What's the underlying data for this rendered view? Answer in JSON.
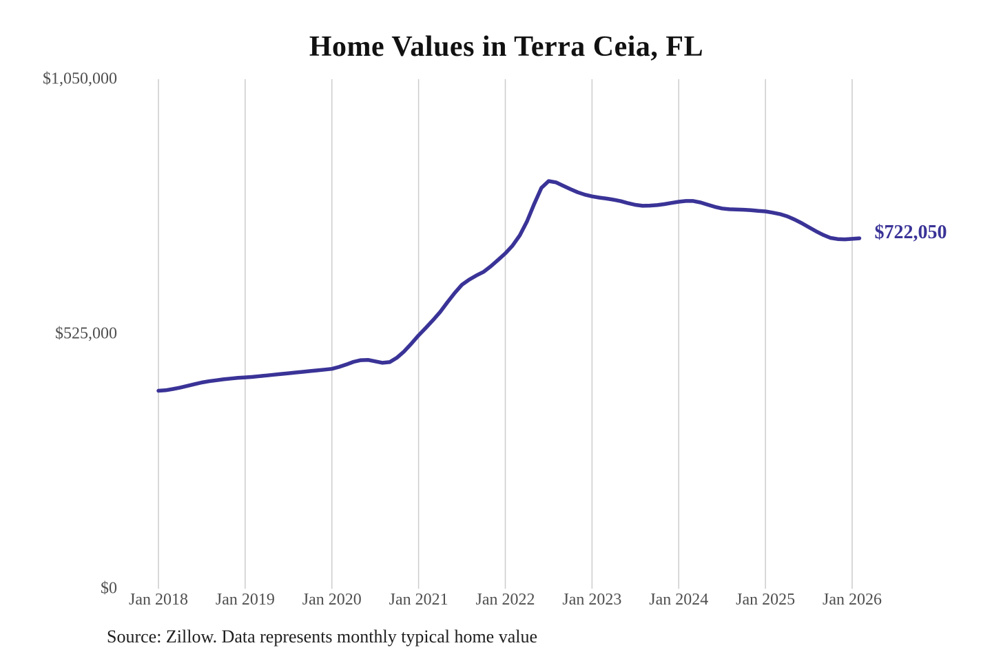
{
  "chart_data": {
    "type": "line",
    "title": "Home Values in Terra Ceia, FL",
    "source_note": "Source: Zillow. Data represents monthly typical home value",
    "legend": "none",
    "grid": "vertical-only",
    "x_axis": {
      "ticks": [
        "Jan 2018",
        "Jan 2019",
        "Jan 2020",
        "Jan 2021",
        "Jan 2022",
        "Jan 2023",
        "Jan 2024",
        "Jan 2025",
        "Jan 2026"
      ],
      "frequency": "monthly",
      "start": "Jan 2018",
      "end": "Feb 2026"
    },
    "y_axis": {
      "range": [
        0,
        1050000
      ],
      "ticks": [
        {
          "label": "$0",
          "value": 0
        },
        {
          "label": "$525,000",
          "value": 525000
        },
        {
          "label": "$1,050,000",
          "value": 1050000
        }
      ]
    },
    "series": [
      {
        "name": "Typical home value",
        "values": [
          408000,
          409000,
          411500,
          414500,
          418000,
          421500,
          425000,
          427500,
          429500,
          431500,
          433000,
          434500,
          435500,
          436500,
          438000,
          439500,
          441000,
          442500,
          444000,
          445500,
          447000,
          448500,
          450000,
          451500,
          453000,
          457000,
          462000,
          467500,
          471000,
          471500,
          468500,
          465500,
          467000,
          476000,
          489000,
          505000,
          522000,
          537500,
          553500,
          570500,
          590500,
          609500,
          626500,
          637000,
          645500,
          653000,
          664500,
          677500,
          691000,
          707000,
          728000,
          757000,
          793000,
          826000,
          840000,
          837500,
          830500,
          823500,
          817000,
          812000,
          808500,
          806000,
          804000,
          801500,
          798500,
          794500,
          791000,
          789000,
          789500,
          790500,
          792500,
          795000,
          797500,
          799000,
          799000,
          796000,
          791500,
          787000,
          783500,
          782000,
          781500,
          781000,
          780000,
          778500,
          777500,
          775000,
          772000,
          767500,
          761000,
          753500,
          745000,
          736500,
          729000,
          723000,
          720500,
          720000,
          721000,
          722050
        ]
      }
    ],
    "annotation": {
      "label": "$722,050",
      "value": 722050
    },
    "colors": {
      "line": "#3a3397",
      "grid": "#cccccc",
      "tick_label": "#4f4f4f",
      "title": "#111111",
      "source": "#1f1f1f",
      "background": "#ffffff"
    }
  }
}
